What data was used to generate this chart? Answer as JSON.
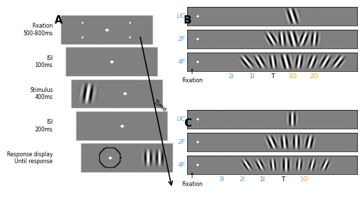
{
  "panel_A_label": "A",
  "panel_B_label": "B",
  "panel_C_label": "C",
  "frame_labels": [
    "Fixation\n500-800ms",
    "ISI\n100ms",
    "Stimulus\n400ms",
    "ISI\n200ms",
    "Response display\nUntil response"
  ],
  "B_row_labels": [
    "UC",
    "2F",
    "4F"
  ],
  "C_row_labels": [
    "UC",
    "2F",
    "4F"
  ],
  "B_bottom_labels": [
    "Fixation",
    "2I",
    "1I",
    "T",
    "1O",
    "2O"
  ],
  "C_bottom_labels": [
    "Fixation",
    "3I",
    "2I",
    "1I",
    "T",
    "1O"
  ],
  "B_label_colors": [
    "black",
    "#5ba3d9",
    "#9b59b6",
    "black",
    "#e8a020",
    "#e8a020"
  ],
  "C_label_colors": [
    "black",
    "#5ba3d9",
    "#5ba3d9",
    "#9b59b6",
    "black",
    "#e8a020"
  ],
  "row_label_color": "#5ba3d9",
  "time_arrow_label": "Time"
}
